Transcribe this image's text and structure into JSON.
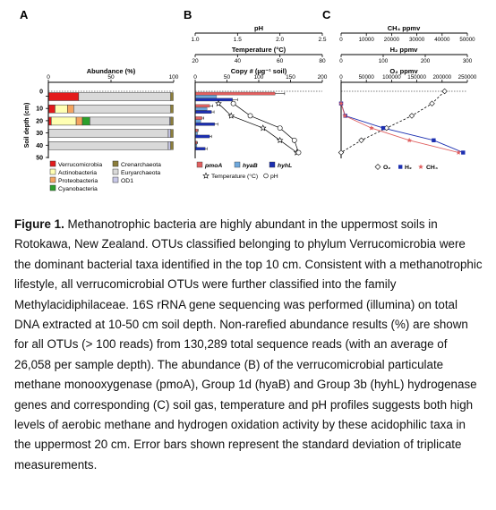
{
  "figure": {
    "panel_labels": [
      "A",
      "B",
      "C"
    ],
    "panelA": {
      "axis_title": "Abundance (%)",
      "ticks": [
        "0",
        "50",
        "100"
      ],
      "y_label": "Soil depth (cm)",
      "depths": [
        "0",
        "10",
        "20",
        "30",
        "40",
        "50"
      ],
      "legend": [
        {
          "label": "Verrucomicrobia",
          "color": "#e31a1c"
        },
        {
          "label": "Actinobacteria",
          "color": "#ffffb3"
        },
        {
          "label": "Proteobacteria",
          "color": "#f4a460"
        },
        {
          "label": "Cyanobacteria",
          "color": "#2ca02c"
        },
        {
          "label": "Crenarchaeota",
          "color": "#8b7d3a"
        },
        {
          "label": "Euryarchaeota",
          "color": "#d9d9d9"
        },
        {
          "label": "OD1",
          "color": "#c8c8e8"
        }
      ]
    },
    "panelB": {
      "ph_title": "pH",
      "ph_ticks": [
        "1.0",
        "1.5",
        "2.0",
        "2.5"
      ],
      "temp_title": "Temperature (°C)",
      "temp_ticks": [
        "20",
        "40",
        "60",
        "80"
      ],
      "copy_title": "Copy # (µg⁻¹ soil)",
      "copy_ticks": [
        "0",
        "50",
        "100",
        "150",
        "200"
      ],
      "legend": [
        {
          "label": "pmoA",
          "color": "#e06060"
        },
        {
          "label": "hyaB",
          "color": "#6fa8dc"
        },
        {
          "label": "hyhL",
          "color": "#1c2fb0"
        }
      ],
      "legend_line2": [
        "Temperature (°C)",
        "pH"
      ]
    },
    "panelC": {
      "ch4_title": "CH₄ ppmv",
      "ch4_ticks": [
        "0",
        "10000",
        "20000",
        "30000",
        "40000",
        "50000"
      ],
      "h2_title": "H₂ ppmv",
      "h2_ticks": [
        "0",
        "100",
        "200",
        "300"
      ],
      "o2_title": "O₂ ppmv",
      "o2_ticks": [
        "0",
        "50000",
        "100000",
        "150000",
        "200000",
        "250000"
      ],
      "legend": [
        {
          "label": "O₂",
          "color": "#000000"
        },
        {
          "label": "H₂",
          "color": "#1c2fb0"
        },
        {
          "label": "CH₄",
          "color": "#e06060"
        }
      ]
    }
  },
  "chart_data": [
    {
      "type": "bar",
      "orientation": "horizontal-stacked",
      "categories": [
        "10",
        "20",
        "30",
        "40",
        "50"
      ],
      "xlabel": "Abundance (%)",
      "ylabel": "Soil depth (cm)",
      "xlim": [
        0,
        100
      ],
      "series": [
        {
          "name": "Verrucomicrobia",
          "values": [
            24,
            5,
            2,
            0,
            0
          ]
        },
        {
          "name": "Actinobacteria",
          "values": [
            0,
            10,
            20,
            0,
            0
          ]
        },
        {
          "name": "Proteobacteria",
          "values": [
            0,
            5,
            5,
            0,
            0
          ]
        },
        {
          "name": "Cyanobacteria",
          "values": [
            0,
            0,
            6,
            0,
            0
          ]
        },
        {
          "name": "Crenarchaeota",
          "values": [
            0,
            0,
            0,
            0,
            0
          ]
        },
        {
          "name": "Euryarchaeota",
          "values": [
            74,
            78,
            64,
            96,
            96
          ]
        },
        {
          "name": "OD1",
          "values": [
            0,
            0,
            2,
            2,
            2
          ]
        }
      ]
    },
    {
      "type": "bar",
      "orientation": "horizontal-grouped",
      "categories": [
        "10",
        "20",
        "30",
        "40",
        "50"
      ],
      "xlabel": "Copy # (µg⁻¹ soil)",
      "xlim": [
        0,
        200
      ],
      "series": [
        {
          "name": "pmoA",
          "values": [
            125,
            22,
            10,
            3,
            2
          ],
          "errors": [
            15,
            5,
            3,
            1,
            1
          ]
        },
        {
          "name": "hyaB",
          "values": [
            33,
            18,
            8,
            3,
            2
          ]
        },
        {
          "name": "hyhL",
          "values": [
            58,
            25,
            30,
            22,
            15
          ],
          "errors": [
            8,
            4,
            5,
            3,
            3
          ]
        }
      ],
      "lines": [
        {
          "name": "Temperature (°C)",
          "depths": [
            10,
            20,
            30,
            40,
            50
          ],
          "values": [
            31,
            37,
            52,
            60,
            68
          ]
        },
        {
          "name": "pH",
          "depths": [
            10,
            20,
            30,
            40,
            50
          ],
          "values": [
            1.45,
            1.65,
            2.0,
            2.17,
            2.22
          ]
        }
      ]
    },
    {
      "type": "line",
      "ylabel": "Soil depth (cm)",
      "series": [
        {
          "name": "O₂",
          "unit": "ppmv",
          "depths": [
            0,
            10,
            20,
            30,
            40,
            50
          ],
          "values": [
            205000,
            180000,
            140000,
            90000,
            40000,
            0
          ]
        },
        {
          "name": "H₂",
          "unit": "ppmv",
          "depths": [
            10,
            20,
            30,
            40,
            50
          ],
          "values": [
            0,
            10,
            100,
            220,
            290
          ]
        },
        {
          "name": "CH₄",
          "unit": "ppmv",
          "depths": [
            10,
            20,
            30,
            40,
            50
          ],
          "values": [
            0,
            1500,
            12000,
            27000,
            46500
          ]
        }
      ]
    }
  ],
  "caption": {
    "lead": "Figure 1.",
    "text": " Methanotrophic bacteria are highly abundant in the uppermost soils in Rotokawa, New Zealand. OTUs classified belonging to phylum Verrucomicrobia were the dominant bacterial taxa identified in the top 10 cm. Consistent with a methanotrophic lifestyle, all verrucomicrobial OTUs were further classified into the family Methylacidiphilaceae. 16S rRNA gene sequencing was performed (illumina) on total DNA extracted at 10-50 cm soil depth. Non-rarefied abundance results (%) are shown for all OTUs (> 100 reads) from 130,289 total sequence reads (with an average of 26,058 per sample depth). The abundance (B) of the verrucomicrobial particulate methane monooxygenase (pmoA), Group 1d (hyaB) and Group 3b (hyhL) hydrogenase genes and corresponding (C) soil gas, temperature and pH profiles suggests both high levels of aerobic methane and hydrogen oxidation activity by these acidophilic taxa in the uppermost 20 cm. Error bars shown represent the standard deviation of triplicate measurements."
  }
}
